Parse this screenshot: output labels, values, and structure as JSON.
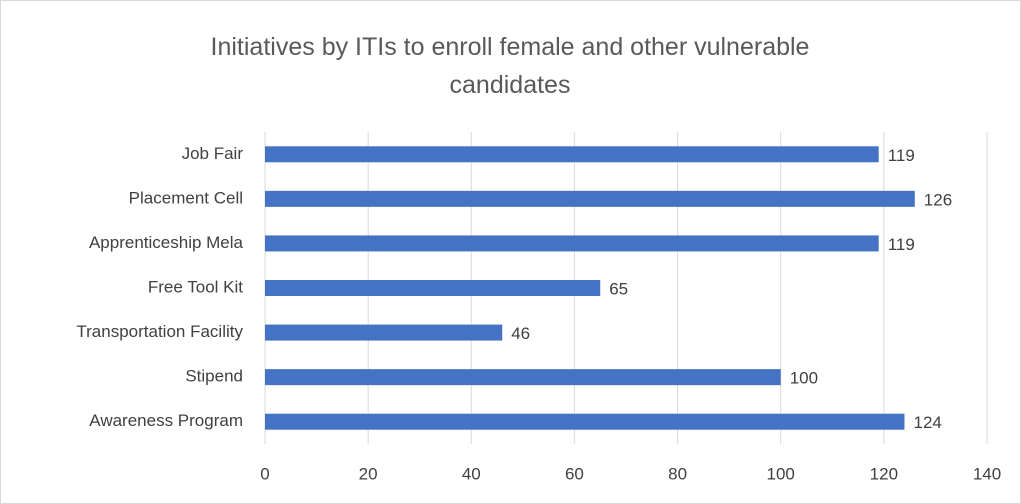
{
  "chart_data": {
    "type": "bar",
    "orientation": "horizontal",
    "title": "Initiatives by ITIs to enroll female and other vulnerable candidates",
    "categories": [
      "Job Fair",
      "Placement Cell",
      "Apprenticeship Mela",
      "Free Tool Kit",
      "Transportation Facility",
      "Stipend",
      "Awareness Program"
    ],
    "values": [
      119,
      126,
      119,
      65,
      46,
      100,
      124
    ],
    "color": "#4472c4",
    "xlim": [
      0,
      140
    ],
    "xticks": [
      0,
      20,
      40,
      60,
      80,
      100,
      120,
      140
    ],
    "grid": true
  }
}
